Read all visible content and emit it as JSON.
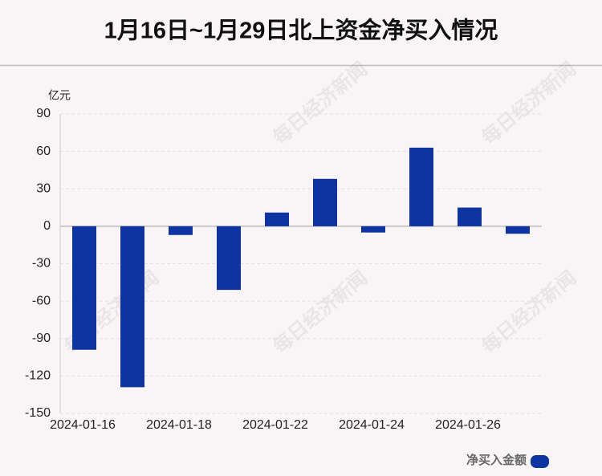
{
  "chart_data": {
    "type": "bar",
    "title": "1月16日~1月29日北上资金净买入情况",
    "y_unit": "亿元",
    "watermark": "每日经济新闻",
    "categories": [
      "2024-01-16",
      null,
      "2024-01-18",
      null,
      "2024-01-22",
      null,
      "2024-01-24",
      null,
      "2024-01-26",
      null
    ],
    "series": [
      {
        "name": "净买入金额",
        "color": "#0d34a0",
        "values": [
          -99,
          -129,
          -7,
          -51,
          11,
          38,
          -5,
          63,
          15,
          -6
        ]
      }
    ],
    "ylim": [
      -150,
      90
    ],
    "yticks": [
      -150,
      -120,
      -90,
      -60,
      -30,
      0,
      30,
      60,
      90
    ],
    "grid": true,
    "legend": "bottom-right"
  }
}
